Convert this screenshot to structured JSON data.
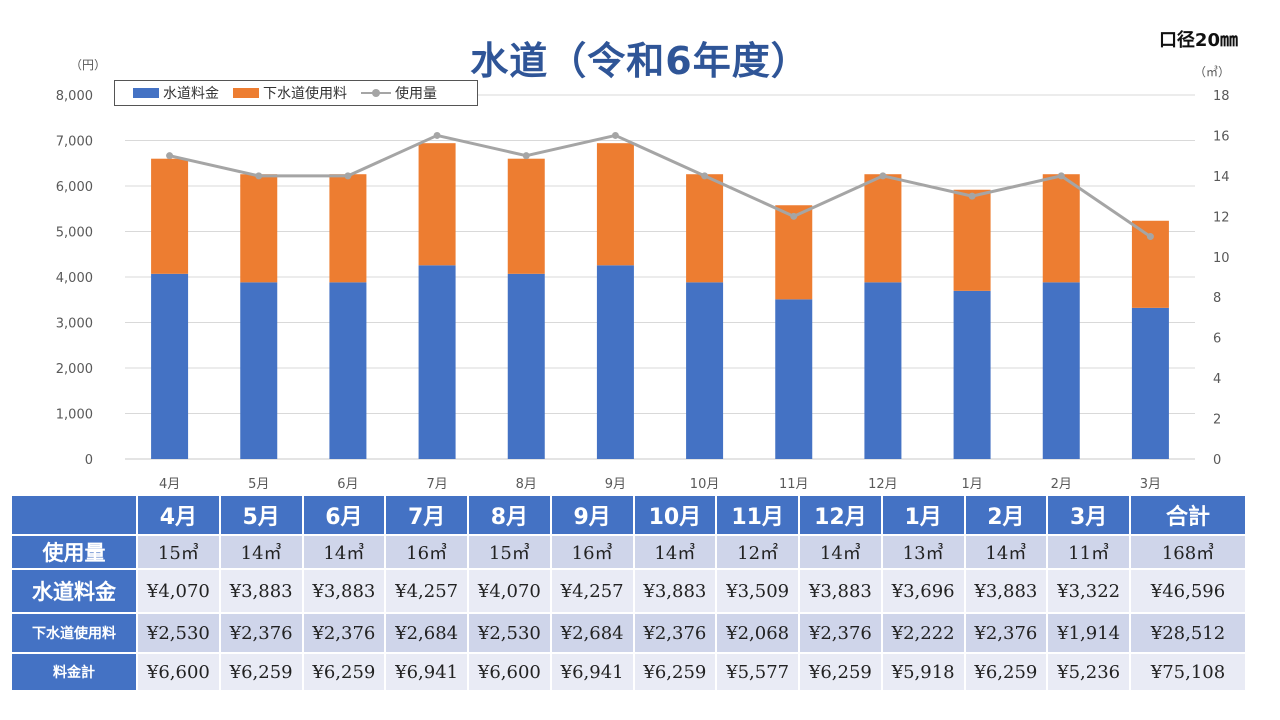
{
  "title": "水道（令和6年度）",
  "bore_size": "口径20㎜",
  "chart_data": {
    "type": "bar",
    "stacked": true,
    "categories": [
      "4月",
      "5月",
      "6月",
      "7月",
      "8月",
      "9月",
      "10月",
      "11月",
      "12月",
      "1月",
      "2月",
      "3月"
    ],
    "series": [
      {
        "name": "水道料金",
        "values": [
          4070,
          3883,
          3883,
          4257,
          4070,
          4257,
          3883,
          3509,
          3883,
          3696,
          3883,
          3322
        ],
        "color": "#4472c4",
        "axis": "left"
      },
      {
        "name": "下水道使用料",
        "values": [
          2530,
          2376,
          2376,
          2684,
          2530,
          2684,
          2376,
          2068,
          2376,
          2222,
          2376,
          1914
        ],
        "color": "#ed7d31",
        "axis": "left"
      },
      {
        "name": "使用量",
        "type": "line",
        "values": [
          15,
          14,
          14,
          16,
          15,
          16,
          14,
          12,
          14,
          13,
          14,
          11
        ],
        "color": "#a5a5a5",
        "axis": "right"
      }
    ],
    "y_left": {
      "label": "（円）",
      "min": 0,
      "max": 8000,
      "step": 1000,
      "ticks": [
        "0",
        "1,000",
        "2,000",
        "3,000",
        "4,000",
        "5,000",
        "6,000",
        "7,000",
        "8,000"
      ]
    },
    "y_right": {
      "label": "（㎥）",
      "min": 0,
      "max": 18,
      "step": 2,
      "ticks": [
        "0",
        "2",
        "4",
        "6",
        "8",
        "10",
        "12",
        "14",
        "16",
        "18"
      ]
    },
    "grid": true,
    "legend": "top-left"
  },
  "table": {
    "headers": [
      "4月",
      "5月",
      "6月",
      "7月",
      "8月",
      "9月",
      "10月",
      "11月",
      "12月",
      "1月",
      "2月",
      "3月",
      "合計"
    ],
    "rows": [
      {
        "label": "使用量",
        "cells": [
          "15㎥",
          "14㎥",
          "14㎥",
          "16㎥",
          "15㎥",
          "16㎥",
          "14㎥",
          "12㎡",
          "14㎥",
          "13㎥",
          "14㎥",
          "11㎥",
          "168㎥"
        ]
      },
      {
        "label": "水道料金",
        "cells": [
          "¥4,070",
          "¥3,883",
          "¥3,883",
          "¥4,257",
          "¥4,070",
          "¥4,257",
          "¥3,883",
          "¥3,509",
          "¥3,883",
          "¥3,696",
          "¥3,883",
          "¥3,322",
          "¥46,596"
        ]
      },
      {
        "label": "下水道使用料",
        "cells": [
          "¥2,530",
          "¥2,376",
          "¥2,376",
          "¥2,684",
          "¥2,530",
          "¥2,684",
          "¥2,376",
          "¥2,068",
          "¥2,376",
          "¥2,222",
          "¥2,376",
          "¥1,914",
          "¥28,512"
        ]
      },
      {
        "label": "料金計",
        "cells": [
          "¥6,600",
          "¥6,259",
          "¥6,259",
          "¥6,941",
          "¥6,600",
          "¥6,941",
          "¥6,259",
          "¥5,577",
          "¥6,259",
          "¥5,918",
          "¥6,259",
          "¥5,236",
          "¥75,108"
        ]
      }
    ]
  }
}
